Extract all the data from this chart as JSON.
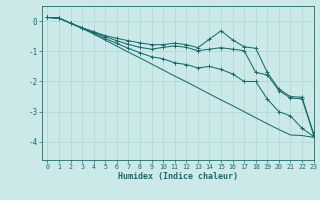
{
  "xlabel": "Humidex (Indice chaleur)",
  "bg_color": "#cce9e9",
  "grid_color": "#afd4d4",
  "line_color": "#1a6b6b",
  "xlim": [
    -0.5,
    23
  ],
  "ylim": [
    -4.6,
    0.5
  ],
  "yticks": [
    0,
    -1,
    -2,
    -3,
    -4
  ],
  "xticks": [
    0,
    1,
    2,
    3,
    4,
    5,
    6,
    7,
    8,
    9,
    10,
    11,
    12,
    13,
    14,
    15,
    16,
    17,
    18,
    19,
    20,
    21,
    22,
    23
  ],
  "line1_x": [
    0,
    1,
    2,
    3,
    4,
    5,
    6,
    7,
    8,
    9,
    10,
    11,
    12,
    13,
    14,
    15,
    16,
    17,
    18,
    19,
    20,
    21,
    22,
    23
  ],
  "line1_y": [
    0.12,
    0.1,
    -0.07,
    -0.22,
    -0.35,
    -0.48,
    -0.57,
    -0.65,
    -0.72,
    -0.78,
    -0.78,
    -0.73,
    -0.78,
    -0.88,
    -0.6,
    -0.32,
    -0.62,
    -0.85,
    -0.9,
    -1.7,
    -2.25,
    -2.5,
    -2.52,
    -3.72
  ],
  "line2_x": [
    0,
    1,
    2,
    3,
    4,
    5,
    6,
    7,
    8,
    9,
    10,
    11,
    12,
    13,
    14,
    15,
    16,
    17,
    18,
    19,
    20,
    21,
    22,
    23
  ],
  "line2_y": [
    0.12,
    0.1,
    -0.07,
    -0.22,
    -0.37,
    -0.52,
    -0.65,
    -0.77,
    -0.87,
    -0.93,
    -0.87,
    -0.82,
    -0.87,
    -0.98,
    -0.93,
    -0.88,
    -0.93,
    -0.98,
    -1.7,
    -1.78,
    -2.3,
    -2.55,
    -2.57,
    -3.77
  ],
  "line3_x": [
    0,
    1,
    2,
    3,
    4,
    5,
    6,
    7,
    8,
    9,
    10,
    11,
    12,
    13,
    14,
    15,
    16,
    17,
    18,
    19,
    20,
    21,
    22,
    23
  ],
  "line3_y": [
    0.12,
    0.1,
    -0.07,
    -0.24,
    -0.43,
    -0.63,
    -0.83,
    -1.03,
    -1.22,
    -1.42,
    -1.62,
    -1.82,
    -2.01,
    -2.21,
    -2.41,
    -2.61,
    -2.8,
    -3.0,
    -3.2,
    -3.4,
    -3.59,
    -3.77,
    -3.79,
    -3.85
  ],
  "line4_x": [
    0,
    1,
    2,
    3,
    4,
    5,
    6,
    7,
    8,
    9,
    10,
    11,
    12,
    13,
    14,
    15,
    16,
    17,
    18,
    19,
    20,
    21,
    22,
    23
  ],
  "line4_y": [
    0.12,
    0.1,
    -0.07,
    -0.24,
    -0.4,
    -0.58,
    -0.74,
    -0.9,
    -1.05,
    -1.18,
    -1.25,
    -1.38,
    -1.44,
    -1.55,
    -1.5,
    -1.6,
    -1.75,
    -2.0,
    -2.0,
    -2.58,
    -3.0,
    -3.14,
    -3.55,
    -3.82
  ]
}
